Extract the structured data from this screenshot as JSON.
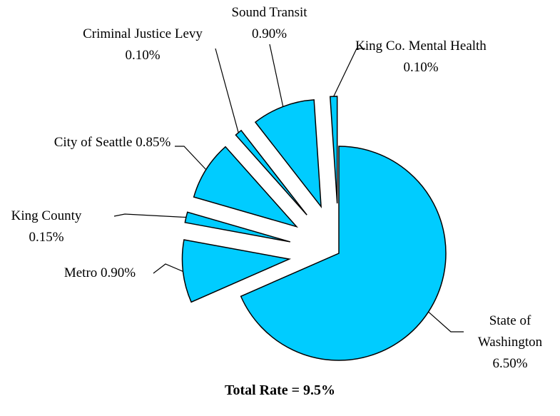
{
  "chart_data": {
    "type": "pie",
    "categories": [
      "State of Washington",
      "Metro",
      "King County",
      "City of Seattle",
      "Criminal Justice Levy",
      "Sound Transit",
      "King Co. Mental Health"
    ],
    "values": [
      6.5,
      0.9,
      0.15,
      0.85,
      0.1,
      0.9,
      0.1
    ],
    "value_labels": [
      "6.50%",
      "0.90%",
      "0.15%",
      "0.85%",
      "0.10%",
      "0.90%",
      "0.10%"
    ],
    "color": "#00ccff",
    "caption": "Total Rate = 9.5%"
  }
}
